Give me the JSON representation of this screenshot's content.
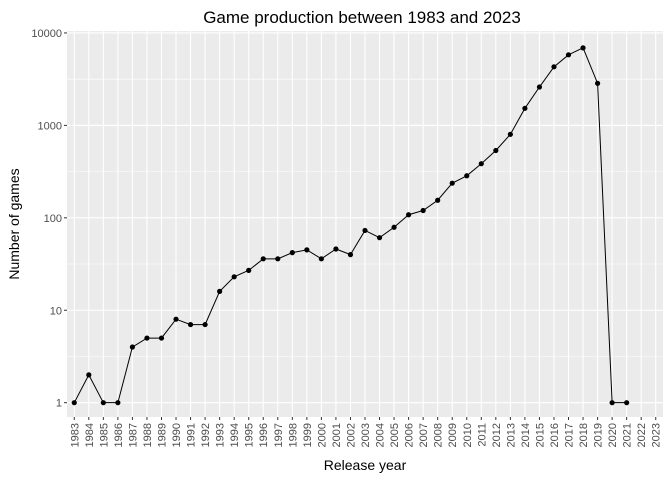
{
  "chart_data": {
    "type": "line",
    "title": "Game production between 1983 and 2023",
    "xlabel": "Release year",
    "ylabel": "Number of games",
    "y_scale": "log10",
    "ylim": [
      0.7,
      10500
    ],
    "y_ticks": [
      1,
      10,
      100,
      1000,
      10000
    ],
    "y_tick_labels": [
      "1",
      "10",
      "100",
      "1000",
      "10000"
    ],
    "x_ticks": [
      "1983",
      "1984",
      "1985",
      "1986",
      "1987",
      "1988",
      "1989",
      "1990",
      "1991",
      "1992",
      "1993",
      "1994",
      "1995",
      "1996",
      "1997",
      "1998",
      "1999",
      "2000",
      "2001",
      "2002",
      "2003",
      "2004",
      "2005",
      "2006",
      "2007",
      "2008",
      "2009",
      "2010",
      "2011",
      "2012",
      "2013",
      "2014",
      "2015",
      "2016",
      "2017",
      "2018",
      "2019",
      "2020",
      "2021",
      "2022",
      "2023"
    ],
    "points": [
      {
        "x": 1983,
        "y": 1
      },
      {
        "x": 1984,
        "y": 2
      },
      {
        "x": 1985,
        "y": 1
      },
      {
        "x": 1986,
        "y": 1
      },
      {
        "x": 1987,
        "y": 4
      },
      {
        "x": 1988,
        "y": 5
      },
      {
        "x": 1989,
        "y": 5
      },
      {
        "x": 1990,
        "y": 8
      },
      {
        "x": 1991,
        "y": 7
      },
      {
        "x": 1992,
        "y": 7
      },
      {
        "x": 1993,
        "y": 16
      },
      {
        "x": 1994,
        "y": 23
      },
      {
        "x": 1995,
        "y": 27
      },
      {
        "x": 1996,
        "y": 36
      },
      {
        "x": 1997,
        "y": 36
      },
      {
        "x": 1998,
        "y": 42
      },
      {
        "x": 1999,
        "y": 45
      },
      {
        "x": 2000,
        "y": 36
      },
      {
        "x": 2001,
        "y": 46
      },
      {
        "x": 2002,
        "y": 40
      },
      {
        "x": 2003,
        "y": 73
      },
      {
        "x": 2004,
        "y": 61
      },
      {
        "x": 2005,
        "y": 79
      },
      {
        "x": 2006,
        "y": 108
      },
      {
        "x": 2007,
        "y": 120
      },
      {
        "x": 2008,
        "y": 155
      },
      {
        "x": 2009,
        "y": 237
      },
      {
        "x": 2010,
        "y": 285
      },
      {
        "x": 2011,
        "y": 385
      },
      {
        "x": 2012,
        "y": 535
      },
      {
        "x": 2013,
        "y": 800
      },
      {
        "x": 2014,
        "y": 1530
      },
      {
        "x": 2015,
        "y": 2600
      },
      {
        "x": 2016,
        "y": 4300
      },
      {
        "x": 2017,
        "y": 5800
      },
      {
        "x": 2018,
        "y": 6900
      },
      {
        "x": 2019,
        "y": 2850
      },
      {
        "x": 2020,
        "y": 1
      },
      {
        "x": 2021,
        "y": 1
      }
    ],
    "grid": true,
    "legend": "none",
    "colors": {
      "panel": "#ebebeb",
      "grid_major": "#ffffff",
      "line": "#000000",
      "points": "#000000"
    }
  }
}
